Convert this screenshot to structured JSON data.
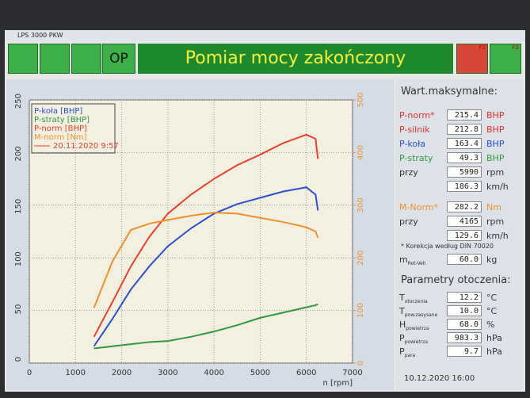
{
  "window_title": "LPS 3000 PKW",
  "toolbar": {
    "op": "OP",
    "status": "Pomiar mocy zakończony",
    "f2": "F2",
    "f3": "F3"
  },
  "chart_data": {
    "type": "line",
    "x_label": "n [rpm]",
    "x": [
      1400,
      1800,
      2200,
      2600,
      3000,
      3500,
      4000,
      4500,
      5000,
      5500,
      6000,
      6200,
      6250
    ],
    "xlim": [
      0,
      7000
    ],
    "xticks": [
      0,
      1000,
      2000,
      3000,
      4000,
      5000,
      6000,
      7000
    ],
    "ylim": [
      0,
      250
    ],
    "yticks": [
      0,
      50,
      100,
      150,
      200,
      250
    ],
    "y2lim": [
      0,
      500
    ],
    "y2ticks": [
      0,
      100,
      200,
      300,
      400,
      500
    ],
    "grid": true,
    "legend_note": "20.11.2020 9:57",
    "series": [
      {
        "name": "P-koła [BHP]",
        "color": "#2a4fd0",
        "values": [
          16,
          42,
          70,
          92,
          111,
          128,
          142,
          151,
          157,
          163,
          167,
          160,
          145
        ]
      },
      {
        "name": "P-straty [BHP]",
        "color": "#2f9a3a",
        "values": [
          14,
          16,
          18,
          20,
          21,
          25,
          30,
          36,
          43,
          48,
          53,
          55,
          56
        ]
      },
      {
        "name": "P-norm [BHP]",
        "color": "#e8402a",
        "values": [
          25,
          58,
          92,
          120,
          142,
          160,
          175,
          188,
          198,
          209,
          217,
          213,
          194
        ]
      },
      {
        "name": "M-norm [Nm]",
        "color": "#f0902a",
        "axis": "y2",
        "values": [
          105,
          193,
          253,
          265,
          272,
          280,
          286,
          284,
          276,
          268,
          258,
          250,
          238
        ]
      }
    ]
  },
  "panel": {
    "title": "Wart.maksymalne:",
    "max": [
      {
        "label": "P-norm*",
        "value": "215.4",
        "unit": "BHP",
        "color": "#e0302a"
      },
      {
        "label": "P-silnik",
        "value": "212.8",
        "unit": "BHP",
        "color": "#e0302a"
      },
      {
        "label": "P-koła",
        "value": "163.4",
        "unit": "BHP",
        "color": "#2a4fd0"
      },
      {
        "label": "P-straty",
        "value": "49.3",
        "unit": "BHP",
        "color": "#2f9a3a"
      },
      {
        "label": "przy",
        "value": "5990",
        "unit": "rpm",
        "color": "#333"
      },
      {
        "value": "186.3",
        "unit": "km/h",
        "color": "#333"
      },
      {
        "label": "M-Norm*",
        "value": "282.2",
        "unit": "Nm",
        "color": "#f0902a"
      },
      {
        "label": "przy",
        "value": "4165",
        "unit": "rpm",
        "color": "#333"
      },
      {
        "value": "129.6",
        "unit": "km/h",
        "color": "#333"
      }
    ],
    "note": "* Korekcja według DIN 70020",
    "mass": {
      "label": "m",
      "sub": "Rot-Veh",
      "value": "60.0",
      "unit": "kg"
    },
    "env_title": "Parametry otoczenia:",
    "env": [
      {
        "label": "T",
        "sub": "otoczenia",
        "value": "12.2",
        "unit": "°C"
      },
      {
        "label": "T",
        "sub": "pow.zasysane",
        "value": "10.0",
        "unit": "°C"
      },
      {
        "label": "H",
        "sub": "powietrza",
        "value": "68.0",
        "unit": "%"
      },
      {
        "label": "P",
        "sub": "powietrza",
        "value": "983.3",
        "unit": "hPa"
      },
      {
        "label": "P",
        "sub": "para",
        "value": "9.7",
        "unit": "hPa"
      }
    ],
    "date": "10.12.2020 16:00"
  }
}
